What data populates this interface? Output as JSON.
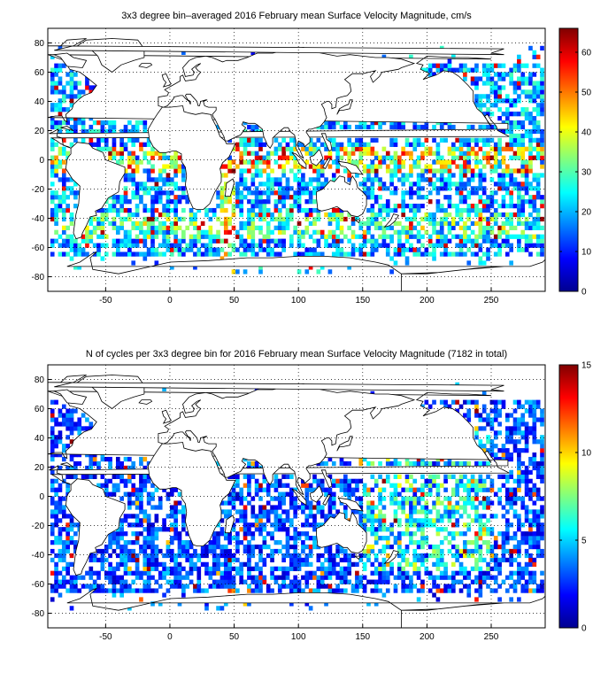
{
  "panels": [
    {
      "title": "3x3 degree bin–averaged 2016 February mean Surface Velocity Magnitude, cm/s",
      "map": {
        "lon_range": [
          -95,
          292
        ],
        "lat_range": [
          -90,
          90
        ],
        "x_ticks": [
          "-50",
          "0",
          "50",
          "100",
          "150",
          "200",
          "250"
        ],
        "y_ticks": [
          "80",
          "60",
          "40",
          "20",
          "0",
          "-20",
          "-40",
          "-60",
          "-80"
        ],
        "grid": "dotted"
      },
      "colorbar": {
        "ticks": [
          "0",
          "10",
          "20",
          "30",
          "40",
          "50",
          "60"
        ],
        "range": [
          0,
          66
        ],
        "colormap": "jet"
      }
    },
    {
      "title": "N of cycles per 3x3 degree bin for 2016 February mean Surface Velocity Magnitude (7182 in total)",
      "map": {
        "lon_range": [
          -95,
          292
        ],
        "lat_range": [
          -90,
          90
        ],
        "x_ticks": [
          "-50",
          "0",
          "50",
          "100",
          "150",
          "200",
          "250"
        ],
        "y_ticks": [
          "80",
          "60",
          "40",
          "20",
          "0",
          "-20",
          "-40",
          "-60",
          "-80"
        ],
        "grid": "dotted"
      },
      "colorbar": {
        "ticks": [
          "0",
          "5",
          "10",
          "15"
        ],
        "range": [
          0,
          15
        ],
        "colormap": "jet"
      }
    }
  ]
}
